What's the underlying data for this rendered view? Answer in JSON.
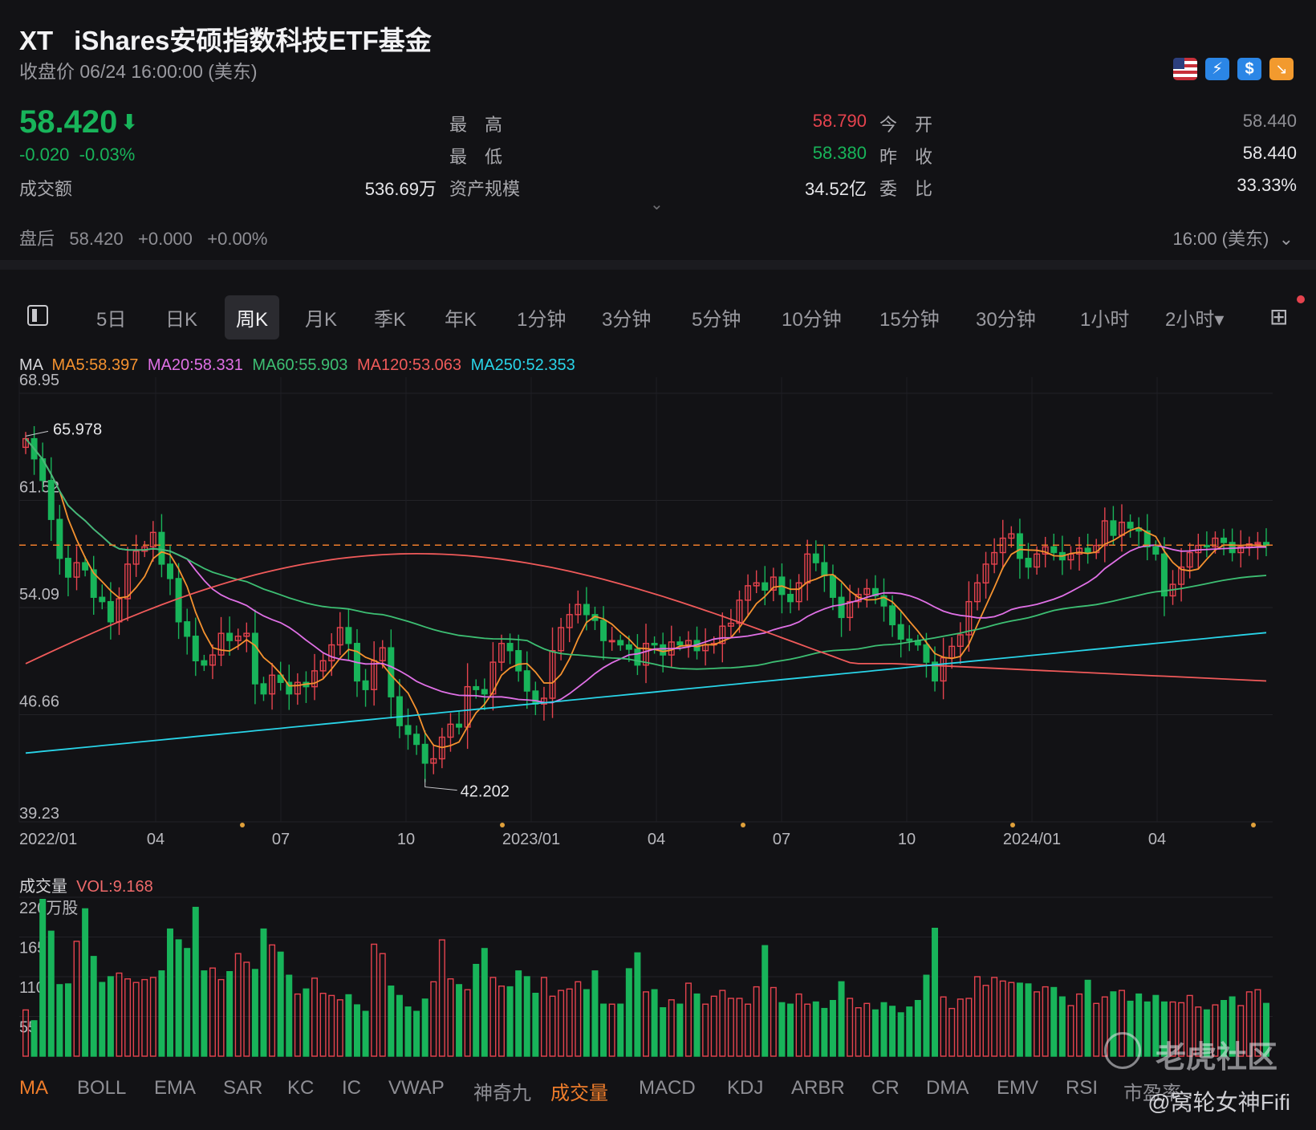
{
  "header": {
    "symbol": "XT",
    "name": "iShares安硕指数科技ETF基金",
    "status": "收盘价 06/24 16:00:00 (美东)",
    "price": "58.420",
    "arrow": "⬇",
    "change": "-0.020",
    "change_pct": "-0.03%"
  },
  "stats": {
    "high_label": "最　高",
    "high": "58.790",
    "open_label": "今　开",
    "open": "58.440",
    "low_label": "最　低",
    "low": "58.380",
    "prev_close_label": "昨　收",
    "prev_close": "58.440",
    "turnover_label": "成交额",
    "turnover": "536.69万",
    "aum_label": "资产规模",
    "aum": "34.52亿",
    "ratio_label": "委　比",
    "ratio": "33.33%"
  },
  "after_hours": {
    "label": "盘后",
    "price": "58.420",
    "change": "+0.000",
    "pct": "+0.00%",
    "time": "16:00 (美东)"
  },
  "tabs": [
    "5日",
    "日K",
    "周K",
    "月K",
    "季K",
    "年K",
    "1分钟",
    "3分钟",
    "5分钟",
    "10分钟",
    "15分钟",
    "30分钟",
    "1小时",
    "2小时▾"
  ],
  "active_tab": "周K",
  "ma_legend": {
    "prefix": "MA",
    "items": [
      {
        "text": "MA5:58.397",
        "color": "#f5922f"
      },
      {
        "text": "MA20:58.331",
        "color": "#e070e6"
      },
      {
        "text": "MA60:55.903",
        "color": "#3dbf73"
      },
      {
        "text": "MA120:53.063",
        "color": "#f05a5a"
      },
      {
        "text": "MA250:52.353",
        "color": "#29d4e8"
      }
    ]
  },
  "volume_legend": {
    "label": "成交量",
    "value": "VOL:9.168"
  },
  "indicators": [
    "MA",
    "BOLL",
    "EMA",
    "SAR",
    "KC",
    "IC",
    "VWAP",
    "神奇九",
    "成交量",
    "MACD",
    "KDJ",
    "ARBR",
    "CR",
    "DMA",
    "EMV",
    "RSI",
    "市盈率"
  ],
  "active_indicators": [
    "MA",
    "成交量"
  ],
  "watermark": {
    "brand": "老虎社区",
    "user": "@窝轮女神Fifi"
  },
  "colors": {
    "up": "#e5434e",
    "down": "#18b45a",
    "bg": "#121215"
  },
  "chart_data": {
    "type": "candlestick",
    "price_axis": {
      "ticks": [
        "68.95",
        "61.52",
        "54.09",
        "46.66",
        "39.23"
      ],
      "range": [
        39.23,
        68.95
      ]
    },
    "time_axis": [
      "2022/01",
      "04",
      "07",
      "10",
      "2023/01",
      "04",
      "07",
      "10",
      "2024/01",
      "04"
    ],
    "annotations": {
      "max": "65.978",
      "min": "42.202",
      "last": 58.42
    },
    "weekly_close": [
      65.8,
      64.4,
      62.9,
      60.2,
      57.5,
      56.2,
      57.2,
      56.7,
      54.8,
      54.5,
      53.1,
      54.7,
      57.1,
      58.0,
      58.3,
      59.3,
      57.1,
      56.1,
      53.1,
      52.1,
      50.4,
      50.1,
      50.8,
      52.3,
      51.8,
      52.1,
      52.3,
      48.8,
      48.1,
      49.4,
      48.9,
      48.1,
      48.9,
      48.6,
      49.7,
      50.4,
      51.5,
      52.7,
      51.6,
      49.0,
      48.4,
      50.4,
      51.3,
      47.9,
      45.9,
      45.3,
      44.6,
      43.3,
      43.6,
      45.1,
      46.0,
      45.8,
      48.6,
      48.4,
      48.1,
      50.3,
      51.6,
      51.1,
      49.7,
      48.3,
      47.4,
      47.8,
      51.1,
      52.7,
      53.6,
      54.3,
      53.6,
      53.2,
      51.8,
      51.8,
      51.5,
      51.2,
      50.1,
      51.6,
      51.5,
      50.8,
      51.7,
      51.5,
      51.8,
      51.1,
      51.5,
      51.6,
      52.8,
      53.0,
      54.6,
      55.6,
      55.8,
      55.3,
      56.2,
      55.0,
      54.5,
      55.8,
      57.8,
      57.2,
      56.3,
      54.8,
      53.4,
      54.5,
      55.0,
      55.4,
      54.9,
      54.2,
      52.9,
      51.9,
      51.8,
      51.5,
      50.3,
      49.0,
      50.6,
      51.4,
      52.2,
      54.5,
      55.8,
      57.1,
      57.9,
      58.9,
      59.2,
      57.5,
      56.9,
      57.8,
      58.3,
      57.9,
      57.4,
      57.8,
      58.2,
      57.9,
      58.4,
      60.1,
      59.1,
      60.0,
      59.6,
      59.4,
      58.3,
      57.8,
      54.9,
      55.7,
      56.9,
      57.9,
      58.4,
      58.3,
      58.9,
      58.6,
      57.9,
      58.3,
      58.5,
      58.6,
      58.4
    ],
    "volume": {
      "label": "成交量",
      "axis_ticks": [
        "220万股",
        "165",
        "110",
        "55"
      ],
      "range": [
        0,
        220
      ],
      "last": 9.168,
      "weekly": [
        64,
        49,
        217,
        173,
        99,
        100,
        159,
        204,
        138,
        102,
        110,
        115,
        107,
        102,
        106,
        109,
        118,
        176,
        161,
        149,
        206,
        118,
        122,
        106,
        117,
        142,
        130,
        120,
        176,
        154,
        144,
        112,
        86,
        93,
        108,
        87,
        84,
        78,
        85,
        71,
        62,
        155,
        142,
        97,
        84,
        68,
        62,
        79,
        103,
        161,
        107,
        99,
        92,
        127,
        149,
        109,
        97,
        96,
        118,
        110,
        87,
        109,
        83,
        91,
        93,
        103,
        92,
        118,
        72,
        72,
        72,
        121,
        143,
        89,
        92,
        67,
        78,
        72,
        101,
        86,
        72,
        83,
        91,
        80,
        80,
        72,
        96,
        153,
        95,
        74,
        72,
        86,
        72,
        75,
        66,
        77,
        103,
        80,
        67,
        73,
        64,
        74,
        69,
        60,
        68,
        77,
        112,
        177,
        82,
        66,
        79,
        80,
        110,
        98,
        109,
        104,
        102,
        101,
        100,
        89,
        96,
        95,
        82,
        70,
        86,
        105,
        73,
        82,
        89,
        91,
        76,
        86,
        75,
        84,
        75,
        75,
        74,
        84,
        68,
        64,
        71,
        77,
        82,
        70,
        89,
        92,
        73
      ]
    }
  }
}
